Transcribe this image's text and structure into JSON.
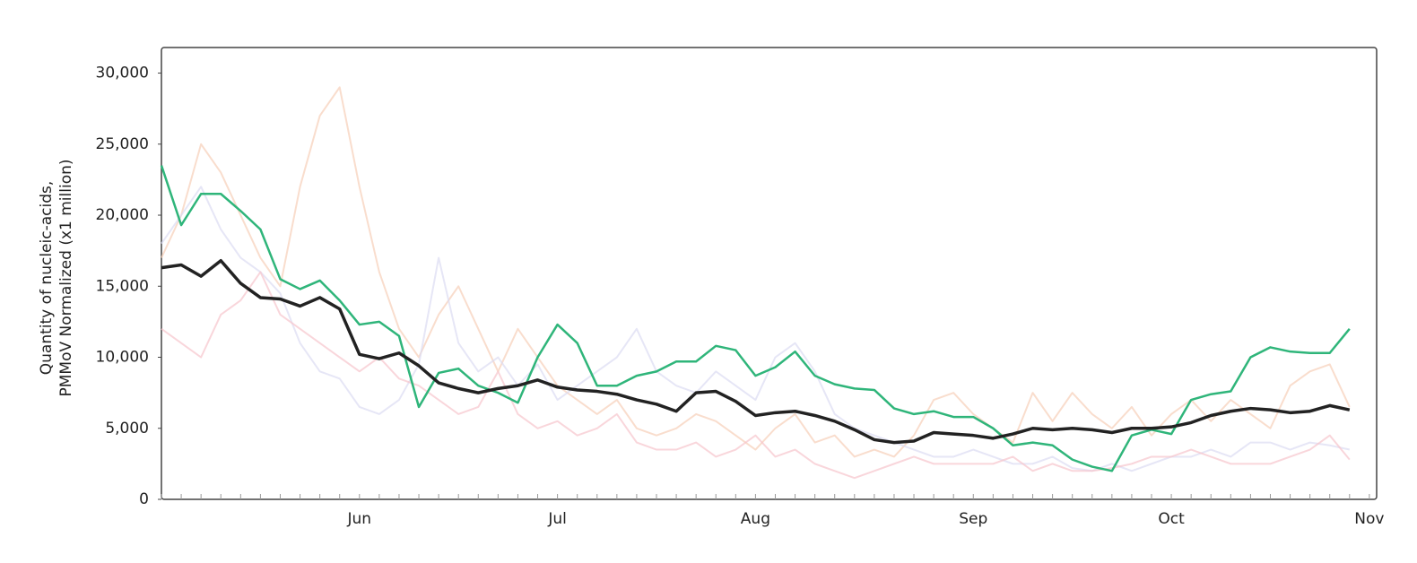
{
  "chart_data": {
    "type": "line",
    "y_label": [
      "Quantity of nucleic-acids,",
      "PMMoV Normalized (x1 million)"
    ],
    "categories": [
      null,
      null,
      null,
      null,
      null,
      null,
      null,
      null,
      null,
      null,
      "Jun",
      null,
      null,
      null,
      null,
      null,
      null,
      null,
      null,
      null,
      "Jul",
      null,
      null,
      null,
      null,
      null,
      null,
      null,
      null,
      null,
      "Aug",
      null,
      null,
      null,
      null,
      null,
      null,
      null,
      null,
      null,
      null,
      "Sep",
      null,
      null,
      null,
      null,
      null,
      null,
      null,
      null,
      null,
      "Oct",
      null,
      null,
      null,
      null,
      null,
      null,
      null,
      null,
      null,
      "Nov"
    ],
    "ylim": [
      0,
      31800
    ],
    "yticks": [
      0,
      {
        "value": 5000,
        "label": "5,000"
      },
      {
        "value": 10000,
        "label": "10,000"
      },
      {
        "value": 15000,
        "label": "15,000"
      },
      {
        "value": 20000,
        "label": "20,000"
      },
      {
        "value": 25000,
        "label": "25,000"
      },
      {
        "value": 30000,
        "label": "30,000"
      }
    ],
    "series": [
      {
        "color": "#f7cfb8",
        "values": [
          17000,
          20000,
          25000,
          23000,
          20000,
          17000,
          15000,
          22000,
          27000,
          29000,
          22000,
          16000,
          12000,
          10000,
          13000,
          15000,
          12000,
          9000,
          12000,
          10000,
          8000,
          7000,
          6000,
          7000,
          5000,
          4500,
          5000,
          6000,
          5500,
          4500,
          3500,
          5000,
          6000,
          4000,
          4500,
          3000,
          3500,
          3000,
          4500,
          7000,
          7500,
          6000,
          5000,
          4000,
          7500,
          5500,
          7500,
          6000,
          5000,
          6500,
          4500,
          6000,
          7000,
          5500,
          7000,
          6000,
          5000,
          8000,
          9000,
          9500,
          6500,
          null
        ]
      },
      {
        "color": "#dcdcf2",
        "values": [
          18000,
          20000,
          22000,
          19000,
          17000,
          16000,
          14500,
          11000,
          9000,
          8500,
          6500,
          6000,
          7000,
          9500,
          17000,
          11000,
          9000,
          10000,
          8000,
          9500,
          7000,
          8000,
          9000,
          10000,
          12000,
          9000,
          8000,
          7500,
          9000,
          8000,
          7000,
          10000,
          11000,
          9000,
          6000,
          5000,
          4500,
          4000,
          3500,
          3000,
          3000,
          3500,
          3000,
          2500,
          2500,
          3000,
          2200,
          2000,
          2500,
          2000,
          2500,
          3000,
          3000,
          3500,
          3000,
          4000,
          4000,
          3500,
          4000,
          3800,
          3500,
          null
        ]
      },
      {
        "color": "#f6c4cc",
        "values": [
          12000,
          11000,
          10000,
          13000,
          14000,
          16000,
          13000,
          12000,
          11000,
          10000,
          9000,
          10000,
          8500,
          8000,
          7000,
          6000,
          6500,
          9000,
          6000,
          5000,
          5500,
          4500,
          5000,
          6000,
          4000,
          3500,
          3500,
          4000,
          3000,
          3500,
          4500,
          3000,
          3500,
          2500,
          2000,
          1500,
          2000,
          2500,
          3000,
          2500,
          2500,
          2500,
          2500,
          3000,
          2000,
          2500,
          2000,
          2000,
          2200,
          2500,
          3000,
          3000,
          3500,
          3000,
          2500,
          2500,
          2500,
          3000,
          3500,
          4500,
          2800,
          null
        ]
      },
      {
        "color": "#2fb57a",
        "values": [
          23500,
          19300,
          21500,
          21500,
          20300,
          19000,
          15500,
          14800,
          15400,
          14000,
          12300,
          12500,
          11500,
          6500,
          8900,
          9200,
          8000,
          7500,
          6800,
          10000,
          12300,
          11000,
          8000,
          8000,
          8700,
          9000,
          9700,
          9700,
          10800,
          10500,
          8700,
          9300,
          10400,
          8700,
          8100,
          7800,
          7700,
          6400,
          6000,
          6200,
          5800,
          5800,
          5000,
          3800,
          4000,
          3800,
          2800,
          2300,
          2000,
          4500,
          4900,
          4600,
          7000,
          7400,
          7600,
          10000,
          10700,
          10400,
          10300,
          10300,
          12000,
          null
        ]
      },
      {
        "color": "#222222",
        "values": [
          16300,
          16500,
          15700,
          16800,
          15200,
          14200,
          14100,
          13600,
          14200,
          13400,
          10200,
          9900,
          10300,
          9400,
          8200,
          7800,
          7500,
          7800,
          8000,
          8400,
          7900,
          7700,
          7600,
          7400,
          7000,
          6700,
          6200,
          7500,
          7600,
          6900,
          5900,
          6100,
          6200,
          5900,
          5500,
          4900,
          4200,
          4000,
          4100,
          4700,
          4600,
          4500,
          4300,
          4600,
          5000,
          4900,
          5000,
          4900,
          4700,
          5000,
          5000,
          5100,
          5400,
          5900,
          6200,
          6400,
          6300,
          6100,
          6200,
          6600,
          6300,
          null
        ]
      }
    ]
  }
}
